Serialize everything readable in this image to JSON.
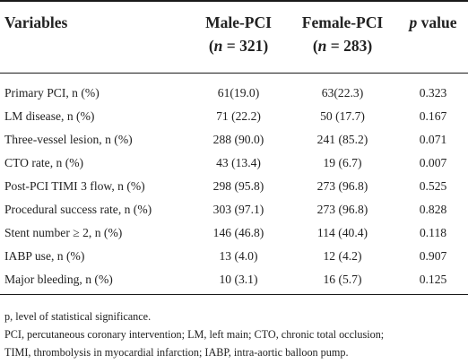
{
  "table": {
    "headers": {
      "variables": "Variables",
      "male_line1": "Male-PCI",
      "male_n_label": "n",
      "male_n_value": " = 321",
      "female_line1": "Female-PCI",
      "female_n_label": "n",
      "female_n_value": " = 283",
      "p_label": "p",
      "p_suffix": " value"
    },
    "rows": [
      {
        "variable": "Primary PCI, n (%)",
        "male": "61(19.0)",
        "female": "63(22.3)",
        "p": "0.323"
      },
      {
        "variable": "LM disease, n (%)",
        "male": "71 (22.2)",
        "female": "50 (17.7)",
        "p": "0.167"
      },
      {
        "variable": "Three-vessel lesion, n (%)",
        "male": "288 (90.0)",
        "female": "241 (85.2)",
        "p": "0.071"
      },
      {
        "variable": "CTO rate, n (%)",
        "male": "43 (13.4)",
        "female": "19 (6.7)",
        "p": "0.007"
      },
      {
        "variable": "Post-PCI TIMI 3 flow, n (%)",
        "male": "298 (95.8)",
        "female": "273 (96.8)",
        "p": "0.525"
      },
      {
        "variable": "Procedural success rate, n (%)",
        "male": "303 (97.1)",
        "female": "273 (96.8)",
        "p": "0.828"
      },
      {
        "variable": "Stent number ≥ 2, n (%)",
        "male": "146 (46.8)",
        "female": "114 (40.4)",
        "p": "0.118"
      },
      {
        "variable": "IABP use, n (%)",
        "male": "13 (4.0)",
        "female": "12 (4.2)",
        "p": "0.907"
      },
      {
        "variable": "Major bleeding, n (%)",
        "male": "10 (3.1)",
        "female": "16 (5.7)",
        "p": "0.125"
      }
    ]
  },
  "footnotes": {
    "line1": "p, level of statistical significance.",
    "line2": "PCI, percutaneous coronary intervention; LM, left main; CTO, chronic total occlusion;",
    "line3": "TIMI, thrombolysis in myocardial infarction; IABP, intra-aortic balloon pump."
  }
}
